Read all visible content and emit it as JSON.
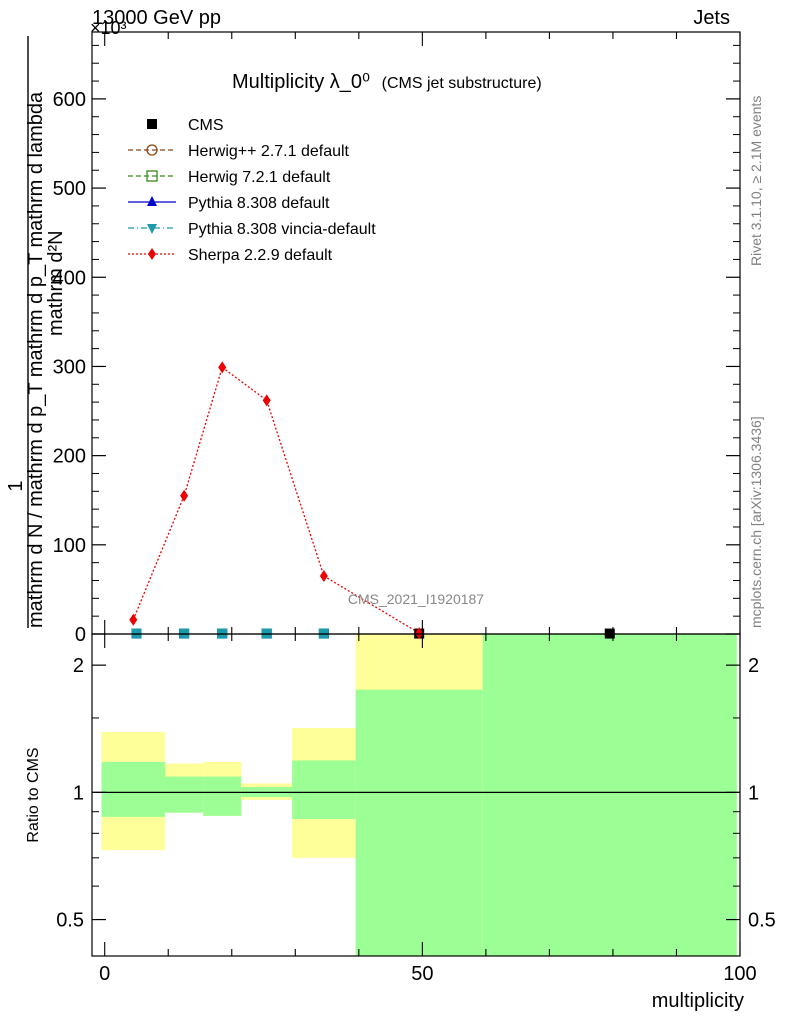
{
  "header": {
    "left": "13000 GeV pp",
    "right": "Jets",
    "multiplier": "×10³"
  },
  "side_labels": {
    "rivet": "Rivet 3.1.10, ≥ 2.1M events",
    "mcplots": "mcplots.cern.ch [arXiv:1306.3436]"
  },
  "watermark": "CMS_2021_I1920187",
  "chart_data": [
    {
      "type": "line",
      "title": "Multiplicity λ_0⁰",
      "subtitle": "(CMS jet substructure)",
      "ylabel_numerator": "1",
      "ylabel_denominator": "mathrm d N / mathrm d p_T mathrm d p_T mathrm d lambda",
      "ylabel_top": "mathrm d²N",
      "xlim": [
        -2,
        100
      ],
      "ylim": [
        0,
        675
      ],
      "yticks": [
        0,
        100,
        200,
        300,
        400,
        500,
        600
      ],
      "yticklabels": [
        "0",
        "100",
        "200",
        "300",
        "400",
        "500",
        "600"
      ],
      "legend": {
        "placement": "top-left",
        "entries": [
          {
            "label": "CMS",
            "color": "#000000",
            "marker": "square"
          },
          {
            "label": "Herwig++ 2.7.1 default",
            "color": "#8b4513",
            "marker": "circle-open",
            "dash": "dashed"
          },
          {
            "label": "Herwig 7.2.1 default",
            "color": "#3a8a1c",
            "marker": "square-open",
            "dash": "dashed"
          },
          {
            "label": "Pythia 8.308 default",
            "color": "#0000cc",
            "marker": "triangle-up",
            "dash": "solid"
          },
          {
            "label": "Pythia 8.308 vincia-default",
            "color": "#1a9aaa",
            "marker": "triangle-down",
            "dash": "dashdot"
          },
          {
            "label": "Sherpa 2.2.9 default",
            "color": "#ee0000",
            "marker": "diamond",
            "dash": "dotted"
          }
        ]
      },
      "series": [
        {
          "name": "CMS",
          "x": [
            5,
            12.5,
            18.5,
            25.5,
            34.5,
            49.5,
            79.5
          ],
          "y": [
            0.5,
            0.5,
            0.5,
            0.5,
            0.5,
            0.5,
            0.5
          ]
        },
        {
          "name": "Sherpa 2.2.9 default",
          "x": [
            4.5,
            12.5,
            18.5,
            25.5,
            34.5,
            49.5
          ],
          "y": [
            16,
            155,
            299,
            262,
            65,
            1
          ]
        }
      ]
    },
    {
      "type": "area",
      "ylabel": "Ratio to CMS",
      "xlabel": "multiplicity",
      "xlim": [
        -2,
        100
      ],
      "ylim": [
        0.41,
        2.37
      ],
      "log_y": true,
      "xticks": [
        0,
        50,
        100
      ],
      "xticklabels": [
        "0",
        "50",
        "100"
      ],
      "yticks": [
        0.5,
        1,
        2
      ],
      "yticklabels": [
        "0.5",
        "1",
        "2"
      ],
      "reference_line": 1,
      "colors": {
        "stat": "#9cff96",
        "total": "#ffff99"
      },
      "bands": [
        {
          "x0": -0.5,
          "x1": 9.5,
          "inner": [
            0.875,
            1.18
          ],
          "outer": [
            0.73,
            1.39
          ]
        },
        {
          "x0": 9.5,
          "x1": 15.5,
          "inner": [
            0.895,
            1.09
          ],
          "outer": [
            0.895,
            1.17
          ]
        },
        {
          "x0": 15.5,
          "x1": 21.5,
          "inner": [
            0.88,
            1.09
          ],
          "outer": [
            0.88,
            1.18
          ]
        },
        {
          "x0": 21.5,
          "x1": 29.5,
          "inner": [
            0.975,
            1.03
          ],
          "outer": [
            0.96,
            1.05
          ]
        },
        {
          "x0": 29.5,
          "x1": 39.5,
          "inner": [
            0.865,
            1.19
          ],
          "outer": [
            0.7,
            1.42
          ]
        },
        {
          "x0": 39.5,
          "x1": 59.5,
          "inner": [
            0.41,
            1.75
          ],
          "outer": [
            0.41,
            2.37
          ]
        },
        {
          "x0": 59.5,
          "x1": 99.5,
          "inner": [
            0.41,
            2.37
          ],
          "outer": [
            0.41,
            2.37
          ]
        }
      ]
    }
  ]
}
